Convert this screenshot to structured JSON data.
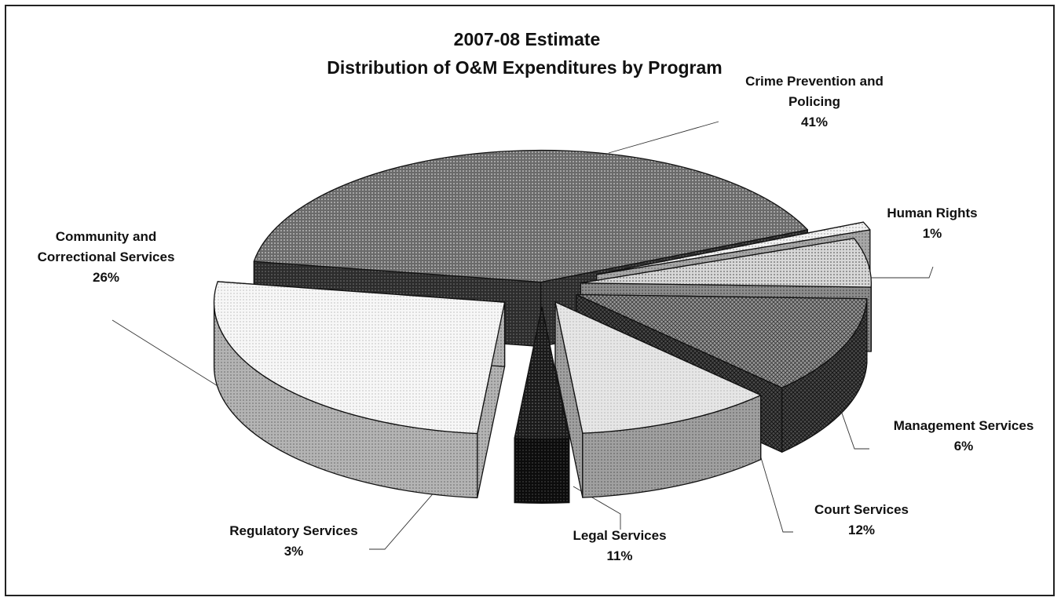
{
  "chart_data": {
    "type": "pie",
    "title": "2007-08 Estimate",
    "subtitle": "Distribution of O&M Expenditures by Program",
    "slices": [
      {
        "label_lines": [
          "Crime Prevention and",
          "Policing"
        ],
        "pct_label": "41%",
        "value": 41
      },
      {
        "label_lines": [
          "Human Rights"
        ],
        "pct_label": "1%",
        "value": 1
      },
      {
        "label_lines": [
          "Management Services"
        ],
        "pct_label": "6%",
        "value": 6
      },
      {
        "label_lines": [
          "Court Services"
        ],
        "pct_label": "12%",
        "value": 12
      },
      {
        "label_lines": [
          "Legal Services"
        ],
        "pct_label": "11%",
        "value": 11
      },
      {
        "label_lines": [
          "Regulatory Services"
        ],
        "pct_label": "3%",
        "value": 3
      },
      {
        "label_lines": [
          "Community and",
          "Correctional Services"
        ],
        "pct_label": "26%",
        "value": 26
      }
    ],
    "style": "3D exploded pie with hatched grayscale fills"
  }
}
